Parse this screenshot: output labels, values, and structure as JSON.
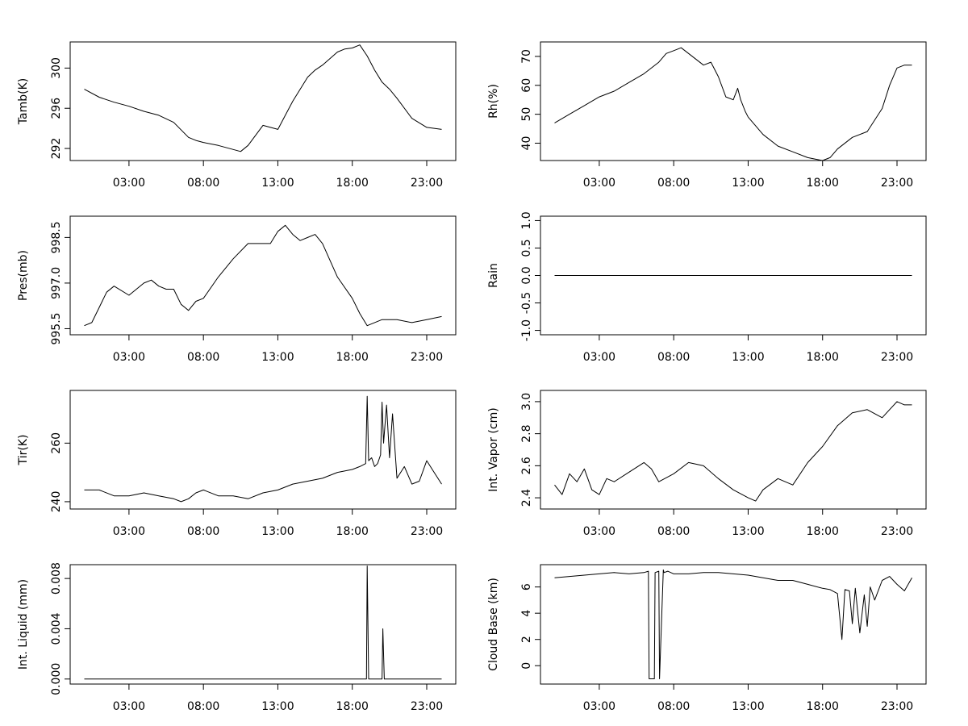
{
  "x_ticks": [
    "03:00",
    "08:00",
    "13:00",
    "18:00",
    "23:00"
  ],
  "chart_data": [
    {
      "type": "line",
      "ylabel": "Tamb(K)",
      "yticks": [
        "292",
        "296",
        "300"
      ],
      "ytick_values": [
        292,
        296,
        300
      ],
      "ylim": [
        290.8,
        302.6
      ],
      "series": [
        {
          "x": [
            0,
            1,
            2,
            3,
            4,
            5,
            6,
            7,
            7.5,
            8,
            9,
            10,
            10.5,
            11,
            12,
            12.5,
            13,
            13.5,
            14,
            15,
            15.5,
            16,
            17,
            17.5,
            18,
            18.5,
            19,
            19.5,
            20,
            20.5,
            21,
            22,
            23,
            24
          ],
          "y": [
            297.9,
            297.1,
            296.6,
            296.2,
            295.7,
            295.3,
            294.6,
            293.1,
            292.8,
            292.6,
            292.3,
            291.9,
            291.7,
            292.3,
            294.3,
            294.1,
            293.9,
            295.3,
            296.7,
            299.1,
            299.8,
            300.3,
            301.6,
            301.9,
            302.0,
            302.3,
            301.2,
            299.8,
            298.6,
            297.9,
            297.0,
            295.0,
            294.1,
            293.9
          ]
        }
      ]
    },
    {
      "type": "line",
      "ylabel": "Rh(%)",
      "yticks": [
        "40",
        "50",
        "60",
        "70"
      ],
      "ytick_values": [
        40,
        50,
        60,
        70
      ],
      "ylim": [
        34,
        75
      ],
      "series": [
        {
          "x": [
            0,
            1,
            2,
            3,
            4,
            5,
            6,
            7,
            7.5,
            8,
            8.5,
            9,
            10,
            10.5,
            11,
            11.5,
            12,
            12.3,
            12.5,
            12.8,
            13,
            14,
            15,
            16,
            17,
            18,
            18.5,
            19,
            20,
            21,
            22,
            22.5,
            23,
            23.5,
            24
          ],
          "y": [
            47,
            50,
            53,
            56,
            58,
            61,
            64,
            68,
            71,
            72,
            73,
            71,
            67,
            68,
            63,
            56,
            55,
            59,
            55,
            51,
            49,
            43,
            39,
            37,
            35,
            34,
            35,
            38,
            42,
            44,
            52,
            60,
            66,
            67,
            67
          ]
        }
      ]
    },
    {
      "type": "line",
      "ylabel": "Pres(mb)",
      "yticks": [
        "995.5",
        "997.0",
        "998.5"
      ],
      "ytick_values": [
        995.5,
        997.0,
        998.5
      ],
      "ylim": [
        995.3,
        999.2
      ],
      "series": [
        {
          "x": [
            0,
            0.5,
            1,
            1.5,
            2,
            3,
            3.5,
            4,
            4.5,
            5,
            5.5,
            6,
            6.5,
            7,
            7.5,
            8,
            9,
            10,
            11,
            12,
            12.5,
            13,
            13.5,
            14,
            14.5,
            15,
            15.5,
            16,
            17,
            18,
            18.5,
            19,
            19.5,
            20,
            21,
            22,
            23,
            24
          ],
          "y": [
            995.6,
            995.7,
            996.2,
            996.7,
            996.9,
            996.6,
            996.8,
            997.0,
            997.1,
            996.9,
            996.8,
            996.8,
            996.3,
            996.1,
            996.4,
            996.5,
            997.2,
            997.8,
            998.3,
            998.3,
            998.3,
            998.7,
            998.9,
            998.6,
            998.4,
            998.5,
            998.6,
            998.3,
            997.2,
            996.5,
            996.0,
            995.6,
            995.7,
            995.8,
            995.8,
            995.7,
            995.8,
            995.9
          ]
        }
      ]
    },
    {
      "type": "line",
      "ylabel": "Rain",
      "yticks": [
        "-1.0",
        "-0.5",
        "0.0",
        "0.5",
        "1.0"
      ],
      "ytick_values": [
        -1.0,
        -0.5,
        0.0,
        0.5,
        1.0
      ],
      "ylim": [
        -1.08,
        1.08
      ],
      "series": [
        {
          "x": [
            0,
            24
          ],
          "y": [
            0,
            0
          ]
        }
      ]
    },
    {
      "type": "line",
      "ylabel": "Tir(K)",
      "yticks": [
        "240",
        "260"
      ],
      "ytick_values": [
        240,
        260
      ],
      "ylim": [
        237.5,
        278
      ],
      "series": [
        {
          "x": [
            0,
            1,
            2,
            3,
            4,
            5,
            6,
            6.5,
            7,
            7.5,
            8,
            9,
            10,
            11,
            12,
            13,
            14,
            15,
            16,
            17,
            18,
            18.5,
            18.9,
            19.0,
            19.1,
            19.3,
            19.5,
            19.7,
            19.9,
            20.0,
            20.1,
            20.3,
            20.5,
            20.7,
            21,
            21.5,
            22,
            22.5,
            23,
            23.5,
            24
          ],
          "y": [
            244,
            244,
            242,
            242,
            243,
            242,
            241,
            240,
            241,
            243,
            244,
            242,
            242,
            241,
            243,
            244,
            246,
            247,
            248,
            250,
            251,
            252,
            253,
            276,
            254,
            255,
            252,
            253,
            256,
            274,
            260,
            273,
            255,
            270,
            248,
            252,
            246,
            247,
            254,
            250,
            246
          ]
        }
      ]
    },
    {
      "type": "line",
      "ylabel": "Int. Vapor (cm)",
      "yticks": [
        "2.4",
        "2.6",
        "2.8",
        "3.0"
      ],
      "ytick_values": [
        2.4,
        2.6,
        2.8,
        3.0
      ],
      "ylim": [
        2.33,
        3.07
      ],
      "series": [
        {
          "x": [
            0,
            0.5,
            1,
            1.5,
            2,
            2.5,
            3,
            3.5,
            4,
            5,
            6,
            6.5,
            7,
            8,
            9,
            10,
            11,
            12,
            13,
            13.5,
            14,
            15,
            16,
            17,
            18,
            19,
            20,
            21,
            22,
            22.5,
            23,
            23.5,
            24
          ],
          "y": [
            2.48,
            2.42,
            2.55,
            2.5,
            2.58,
            2.45,
            2.42,
            2.52,
            2.5,
            2.56,
            2.62,
            2.58,
            2.5,
            2.55,
            2.62,
            2.6,
            2.52,
            2.45,
            2.4,
            2.38,
            2.45,
            2.52,
            2.48,
            2.62,
            2.72,
            2.85,
            2.93,
            2.95,
            2.9,
            2.95,
            3.0,
            2.98,
            2.98
          ]
        }
      ]
    },
    {
      "type": "line",
      "ylabel": "Int. Liquid (mm)",
      "yticks": [
        "0.000",
        "0.004",
        "0.008"
      ],
      "ytick_values": [
        0.0,
        0.004,
        0.008
      ],
      "ylim": [
        -0.0004,
        0.0091
      ],
      "series": [
        {
          "x": [
            0,
            18.95,
            19.0,
            19.05,
            19.1,
            20.0,
            20.05,
            20.1,
            20.15,
            24
          ],
          "y": [
            0,
            0,
            0.009,
            0.0045,
            0,
            0,
            0.004,
            0.002,
            0,
            0
          ]
        }
      ]
    },
    {
      "type": "line",
      "ylabel": "Cloud Base (km)",
      "yticks": [
        "0",
        "2",
        "4",
        "6"
      ],
      "ytick_values": [
        0,
        2,
        4,
        6
      ],
      "ylim": [
        -1.4,
        7.7
      ],
      "series": [
        {
          "x": [
            0,
            1,
            2,
            3,
            4,
            5,
            6,
            6.3,
            6.35,
            6.7,
            6.75,
            7.0,
            7.05,
            7.3,
            7.35,
            7.6,
            8,
            9,
            10,
            11,
            12,
            13,
            13.5,
            14,
            15,
            16,
            17,
            18,
            18.5,
            19,
            19.3,
            19.5,
            19.8,
            20,
            20.2,
            20.5,
            20.8,
            21,
            21.2,
            21.5,
            22,
            22.5,
            23,
            23.5,
            24
          ],
          "y": [
            6.7,
            6.8,
            6.9,
            7.0,
            7.1,
            7.0,
            7.1,
            7.2,
            -1.0,
            -1.0,
            7.1,
            7.2,
            -1.0,
            7.3,
            7.1,
            7.2,
            7.0,
            7.0,
            7.1,
            7.1,
            7.0,
            6.9,
            6.8,
            6.7,
            6.5,
            6.5,
            6.2,
            5.9,
            5.8,
            5.5,
            2.0,
            5.8,
            5.7,
            3.2,
            5.9,
            2.5,
            5.4,
            3.0,
            6.0,
            5.0,
            6.5,
            6.8,
            6.2,
            5.7,
            6.7
          ]
        }
      ]
    }
  ]
}
